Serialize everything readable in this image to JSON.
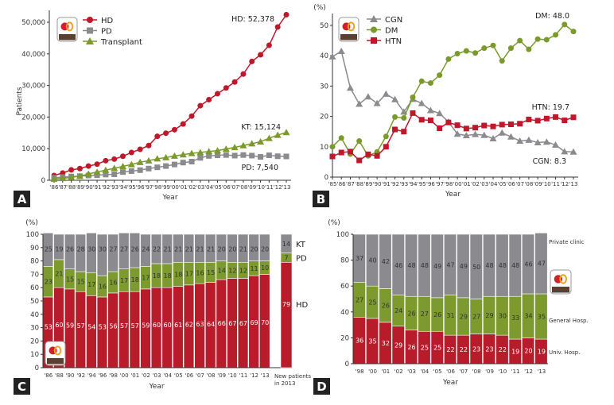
{
  "colors": {
    "red": "#b81b2a",
    "green": "#7c9a2e",
    "gray": "#8b8b8f",
    "axis": "#333333"
  },
  "icons": {
    "logo": "apple-kidney-logo"
  },
  "chart_data": [
    {
      "panel": "A",
      "type": "line",
      "xlabel": "Year",
      "ylabel": "Patients",
      "ylim": [
        0,
        52000
      ],
      "yticks": [
        "0",
        "10,000",
        "20,000",
        "30,000",
        "40,000",
        "50,000"
      ],
      "ytick_values": [
        0,
        10000,
        20000,
        30000,
        40000,
        50000
      ],
      "x": [
        "'86",
        "'87",
        "'88",
        "'89",
        "'90",
        "'91",
        "'92",
        "'93",
        "'94",
        "'95",
        "'96",
        "'97",
        "'98",
        "'99",
        "'00",
        "'01",
        "'02",
        "'03",
        "'04",
        "'05",
        "'06",
        "'07",
        "'08",
        "'09",
        "'10",
        "'11",
        "'12",
        "'13"
      ],
      "legend_placement": "top-left",
      "series": [
        {
          "name": "HD",
          "marker": "circle",
          "color": "#c0172b",
          "values": [
            1500,
            2300,
            3300,
            3700,
            4500,
            5100,
            6200,
            6700,
            7600,
            8800,
            9800,
            11000,
            13900,
            14900,
            16000,
            17800,
            20300,
            23600,
            25500,
            27400,
            29200,
            31100,
            33600,
            37600,
            39700,
            42700,
            48500,
            52378
          ]
        },
        {
          "name": "PD",
          "marker": "square",
          "color": "#8b8b8f",
          "values": [
            800,
            1000,
            1200,
            1300,
            1500,
            1600,
            1800,
            1900,
            2600,
            2900,
            3200,
            3700,
            4100,
            4500,
            5000,
            5600,
            5900,
            7100,
            7700,
            7900,
            8000,
            7800,
            8000,
            7800,
            7400,
            7900,
            7600,
            7540
          ]
        },
        {
          "name": "Transplant",
          "marker": "triangle",
          "color": "#7a9a2a",
          "values": [
            400,
            600,
            900,
            1300,
            2000,
            2600,
            3200,
            3800,
            4400,
            5000,
            5700,
            6200,
            6800,
            7200,
            7700,
            8100,
            8500,
            8800,
            9100,
            9400,
            9900,
            10400,
            11000,
            11600,
            12200,
            13300,
            14300,
            15124
          ]
        }
      ],
      "annotations": [
        "HD: 52,378",
        "KT: 15,124",
        "PD: 7,540"
      ]
    },
    {
      "panel": "B",
      "type": "line",
      "xlabel": "Year",
      "ylabel": "(%)",
      "ylim": [
        0,
        52
      ],
      "yticks": [
        "0",
        "10",
        "20",
        "30",
        "40",
        "50"
      ],
      "ytick_values": [
        0,
        10,
        20,
        30,
        40,
        50
      ],
      "x": [
        "'85",
        "'86",
        "'87",
        "'88",
        "'89",
        "'90",
        "'91",
        "'92",
        "'93",
        "'94",
        "'95",
        "'96",
        "'97",
        "'98",
        "'00",
        "'01",
        "'02",
        "'03",
        "'04",
        "'05",
        "'06",
        "'07",
        "'08",
        "'09",
        "'10",
        "'11",
        "'12",
        "'13"
      ],
      "legend_placement": "top-left",
      "series": [
        {
          "name": "CGN",
          "marker": "triangle",
          "color": "#8b8b8f",
          "values": [
            39.7,
            41.5,
            29.4,
            24.1,
            26.5,
            24.3,
            27.4,
            25.6,
            21.5,
            25.7,
            24.3,
            22.0,
            21.0,
            18.2,
            14.2,
            13.7,
            14.1,
            13.8,
            12.7,
            14.6,
            13.3,
            11.9,
            12.2,
            11.4,
            11.6,
            10.6,
            8.4,
            8.3
          ]
        },
        {
          "name": "DM",
          "marker": "circle",
          "color": "#7a9a2a",
          "values": [
            10.0,
            12.9,
            7.6,
            11.9,
            7.0,
            8.3,
            13.4,
            19.8,
            19.5,
            26.3,
            31.6,
            31.0,
            33.6,
            38.9,
            40.7,
            41.6,
            40.9,
            42.5,
            43.4,
            38.3,
            42.5,
            45.0,
            42.1,
            45.5,
            45.3,
            46.9,
            50.3,
            48.0
          ]
        },
        {
          "name": "HTN",
          "marker": "square",
          "color": "#c0172b",
          "values": [
            6.8,
            8.1,
            8.4,
            5.5,
            7.5,
            7.0,
            10.0,
            15.7,
            15.0,
            21.1,
            18.9,
            18.7,
            16.1,
            18.0,
            17.1,
            16.0,
            16.3,
            17.0,
            16.7,
            17.3,
            17.4,
            17.6,
            19.0,
            18.6,
            19.3,
            19.8,
            18.7,
            19.7
          ]
        }
      ],
      "annotations": [
        "DM: 48.0",
        "HTN: 19.7",
        "CGN: 8.3"
      ]
    },
    {
      "panel": "C",
      "type": "bar",
      "stacked": true,
      "xlabel": "Year",
      "ylabel": "(%)",
      "ylim": [
        0,
        100
      ],
      "yticks": [
        "0",
        "10",
        "20",
        "30",
        "40",
        "50",
        "60",
        "70",
        "80",
        "90",
        "100"
      ],
      "ytick_values": [
        0,
        10,
        20,
        30,
        40,
        50,
        60,
        70,
        80,
        90,
        100
      ],
      "categories": [
        "'86",
        "'88",
        "'90",
        "'92",
        "'94",
        "'96",
        "'98",
        "'00",
        "'01",
        "'02",
        "'03",
        "'04",
        "'05",
        "'06",
        "'07",
        "'08",
        "'09",
        "'10",
        "'11",
        "'12",
        "'13"
      ],
      "series": [
        {
          "name": "HD",
          "values": [
            53,
            60,
            59,
            57,
            54,
            53,
            56,
            57,
            57,
            59,
            60,
            60,
            61,
            62,
            63,
            64,
            66,
            67,
            67,
            69,
            70
          ]
        },
        {
          "name": "PD",
          "values": [
            23,
            21,
            15,
            15,
            17,
            16,
            16,
            17,
            18,
            17,
            18,
            18,
            18,
            17,
            16,
            15,
            14,
            12,
            12,
            11,
            10
          ]
        },
        {
          "name": "KT",
          "values": [
            25,
            19,
            26,
            28,
            30,
            30,
            27,
            27,
            26,
            24,
            22,
            21,
            21,
            21,
            21,
            21,
            20,
            20,
            21,
            20,
            20
          ]
        }
      ],
      "extra_bar": {
        "label_line1": "New patients",
        "label_line2": "in 2013",
        "values": {
          "HD": 79,
          "PD": 7,
          "KT": 14
        }
      }
    },
    {
      "panel": "D",
      "type": "bar",
      "stacked": true,
      "xlabel": "Year",
      "ylabel": "(%)",
      "ylim": [
        0,
        100
      ],
      "yticks": [
        "0",
        "20",
        "40",
        "60",
        "80",
        "100"
      ],
      "ytick_values": [
        0,
        20,
        40,
        60,
        80,
        100
      ],
      "categories": [
        "'98",
        "'00",
        "'01",
        "'02",
        "'03",
        "'04",
        "'05",
        "'06",
        "'07",
        "'08",
        "'09",
        "'10",
        "'11",
        "'12",
        "'13"
      ],
      "series": [
        {
          "name": "Univ. Hosp.",
          "values": [
            36,
            35,
            32,
            29,
            26,
            25,
            25,
            22,
            22,
            23,
            23,
            22,
            19,
            20,
            19
          ]
        },
        {
          "name": "General Hosp.",
          "values": [
            27,
            25,
            26,
            24,
            26,
            27,
            26,
            31,
            29,
            27,
            29,
            30,
            33,
            34,
            35
          ]
        },
        {
          "name": "Private clinic",
          "values": [
            37,
            40,
            42,
            46,
            48,
            48,
            49,
            47,
            49,
            50,
            48,
            48,
            48,
            46,
            47
          ]
        }
      ]
    }
  ]
}
